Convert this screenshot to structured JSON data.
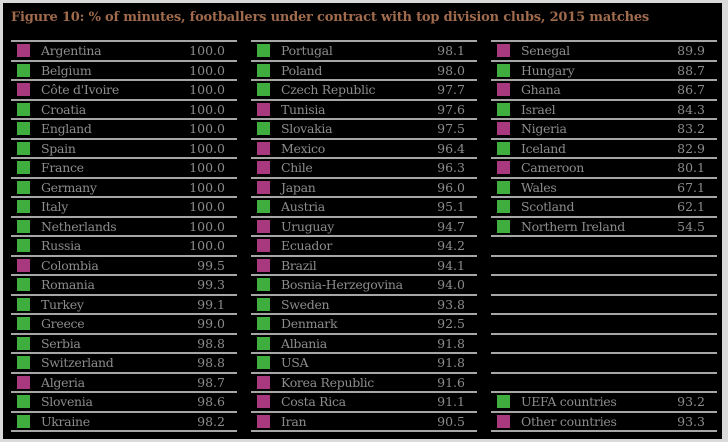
{
  "title": "Figure 10: % of minutes, footballers under contract with top division clubs, 2015 matches",
  "colors": {
    "uefa": "#3fae3f",
    "other": "#a8397f",
    "rule": "#a6a6a6",
    "title": "#a06a4c",
    "text": "#8c8c8c",
    "background": "#000000"
  },
  "columns": [
    [
      {
        "name": "Argentina",
        "value": "100.0",
        "group": "other"
      },
      {
        "name": "Belgium",
        "value": "100.0",
        "group": "uefa"
      },
      {
        "name": "Côte d'Ivoire",
        "value": "100.0",
        "group": "other"
      },
      {
        "name": "Croatia",
        "value": "100.0",
        "group": "uefa"
      },
      {
        "name": "England",
        "value": "100.0",
        "group": "uefa"
      },
      {
        "name": "Spain",
        "value": "100.0",
        "group": "uefa"
      },
      {
        "name": "France",
        "value": "100.0",
        "group": "uefa"
      },
      {
        "name": "Germany",
        "value": "100.0",
        "group": "uefa"
      },
      {
        "name": "Italy",
        "value": "100.0",
        "group": "uefa"
      },
      {
        "name": "Netherlands",
        "value": "100.0",
        "group": "uefa"
      },
      {
        "name": "Russia",
        "value": "100.0",
        "group": "uefa"
      },
      {
        "name": "Colombia",
        "value": "99.5",
        "group": "other"
      },
      {
        "name": "Romania",
        "value": "99.3",
        "group": "uefa"
      },
      {
        "name": "Turkey",
        "value": "99.1",
        "group": "uefa"
      },
      {
        "name": "Greece",
        "value": "99.0",
        "group": "uefa"
      },
      {
        "name": "Serbia",
        "value": "98.8",
        "group": "uefa"
      },
      {
        "name": "Switzerland",
        "value": "98.8",
        "group": "uefa"
      },
      {
        "name": "Algeria",
        "value": "98.7",
        "group": "other"
      },
      {
        "name": "Slovenia",
        "value": "98.6",
        "group": "uefa"
      },
      {
        "name": "Ukraine",
        "value": "98.2",
        "group": "uefa"
      }
    ],
    [
      {
        "name": "Portugal",
        "value": "98.1",
        "group": "uefa"
      },
      {
        "name": "Poland",
        "value": "98.0",
        "group": "uefa"
      },
      {
        "name": "Czech Republic",
        "value": "97.7",
        "group": "uefa"
      },
      {
        "name": "Tunisia",
        "value": "97.6",
        "group": "other"
      },
      {
        "name": "Slovakia",
        "value": "97.5",
        "group": "uefa"
      },
      {
        "name": "Mexico",
        "value": "96.4",
        "group": "other"
      },
      {
        "name": "Chile",
        "value": "96.3",
        "group": "other"
      },
      {
        "name": "Japan",
        "value": "96.0",
        "group": "other"
      },
      {
        "name": "Austria",
        "value": "95.1",
        "group": "uefa"
      },
      {
        "name": "Uruguay",
        "value": "94.7",
        "group": "other"
      },
      {
        "name": "Ecuador",
        "value": "94.2",
        "group": "other"
      },
      {
        "name": "Brazil",
        "value": "94.1",
        "group": "other"
      },
      {
        "name": "Bosnia-Herzegovina",
        "value": "94.0",
        "group": "uefa"
      },
      {
        "name": "Sweden",
        "value": "93.8",
        "group": "uefa"
      },
      {
        "name": "Denmark",
        "value": "92.5",
        "group": "uefa"
      },
      {
        "name": "Albania",
        "value": "91.8",
        "group": "uefa"
      },
      {
        "name": "USA",
        "value": "91.8",
        "group": "uefa"
      },
      {
        "name": "Korea Republic",
        "value": "91.6",
        "group": "other"
      },
      {
        "name": "Costa Rica",
        "value": "91.1",
        "group": "other"
      },
      {
        "name": "Iran",
        "value": "90.5",
        "group": "other"
      }
    ],
    [
      {
        "name": "Senegal",
        "value": "89.9",
        "group": "other"
      },
      {
        "name": "Hungary",
        "value": "88.7",
        "group": "uefa"
      },
      {
        "name": "Ghana",
        "value": "86.7",
        "group": "other"
      },
      {
        "name": "Israel",
        "value": "84.3",
        "group": "uefa"
      },
      {
        "name": "Nigeria",
        "value": "83.2",
        "group": "other"
      },
      {
        "name": "Iceland",
        "value": "82.9",
        "group": "uefa"
      },
      {
        "name": "Cameroon",
        "value": "80.1",
        "group": "other"
      },
      {
        "name": "Wales",
        "value": "67.1",
        "group": "uefa"
      },
      {
        "name": "Scotland",
        "value": "62.1",
        "group": "uefa"
      },
      {
        "name": "Northern Ireland",
        "value": "54.5",
        "group": "uefa"
      },
      {
        "name": "",
        "value": "",
        "group": ""
      },
      {
        "name": "",
        "value": "",
        "group": ""
      },
      {
        "name": "",
        "value": "",
        "group": ""
      },
      {
        "name": "",
        "value": "",
        "group": ""
      },
      {
        "name": "",
        "value": "",
        "group": ""
      },
      {
        "name": "",
        "value": "",
        "group": ""
      },
      {
        "name": "",
        "value": "",
        "group": ""
      },
      {
        "name": "",
        "value": "",
        "group": ""
      },
      {
        "name": "UEFA countries",
        "value": "93.2",
        "group": "uefa"
      },
      {
        "name": "Other countries",
        "value": "93.3",
        "group": "other"
      }
    ]
  ],
  "chart_data": {
    "type": "table",
    "title": "Figure 10: % of minutes, footballers under contract with top division clubs, 2015 matches",
    "legend": {
      "green": "UEFA countries",
      "purple": "Other countries"
    },
    "categories": [
      "Argentina",
      "Belgium",
      "Côte d'Ivoire",
      "Croatia",
      "England",
      "Spain",
      "France",
      "Germany",
      "Italy",
      "Netherlands",
      "Russia",
      "Colombia",
      "Romania",
      "Turkey",
      "Greece",
      "Serbia",
      "Switzerland",
      "Algeria",
      "Slovenia",
      "Ukraine",
      "Portugal",
      "Poland",
      "Czech Republic",
      "Tunisia",
      "Slovakia",
      "Mexico",
      "Chile",
      "Japan",
      "Austria",
      "Uruguay",
      "Ecuador",
      "Brazil",
      "Bosnia-Herzegovina",
      "Sweden",
      "Denmark",
      "Albania",
      "USA",
      "Korea Republic",
      "Costa Rica",
      "Iran",
      "Senegal",
      "Hungary",
      "Ghana",
      "Israel",
      "Nigeria",
      "Iceland",
      "Cameroon",
      "Wales",
      "Scotland",
      "Northern Ireland",
      "UEFA countries",
      "Other countries"
    ],
    "values": [
      100.0,
      100.0,
      100.0,
      100.0,
      100.0,
      100.0,
      100.0,
      100.0,
      100.0,
      100.0,
      100.0,
      99.5,
      99.3,
      99.1,
      99.0,
      98.8,
      98.8,
      98.7,
      98.6,
      98.2,
      98.1,
      98.0,
      97.7,
      97.6,
      97.5,
      96.4,
      96.3,
      96.0,
      95.1,
      94.7,
      94.2,
      94.1,
      94.0,
      93.8,
      92.5,
      91.8,
      91.8,
      91.6,
      91.1,
      90.5,
      89.9,
      88.7,
      86.7,
      84.3,
      83.2,
      82.9,
      80.1,
      67.1,
      62.1,
      54.5,
      93.2,
      93.3
    ],
    "groups": [
      "other",
      "uefa",
      "other",
      "uefa",
      "uefa",
      "uefa",
      "uefa",
      "uefa",
      "uefa",
      "uefa",
      "uefa",
      "other",
      "uefa",
      "uefa",
      "uefa",
      "uefa",
      "uefa",
      "other",
      "uefa",
      "uefa",
      "uefa",
      "uefa",
      "uefa",
      "other",
      "uefa",
      "other",
      "other",
      "other",
      "uefa",
      "other",
      "other",
      "other",
      "uefa",
      "uefa",
      "uefa",
      "uefa",
      "uefa",
      "other",
      "other",
      "other",
      "other",
      "uefa",
      "other",
      "uefa",
      "other",
      "uefa",
      "other",
      "uefa",
      "uefa",
      "uefa",
      "uefa",
      "other"
    ]
  }
}
